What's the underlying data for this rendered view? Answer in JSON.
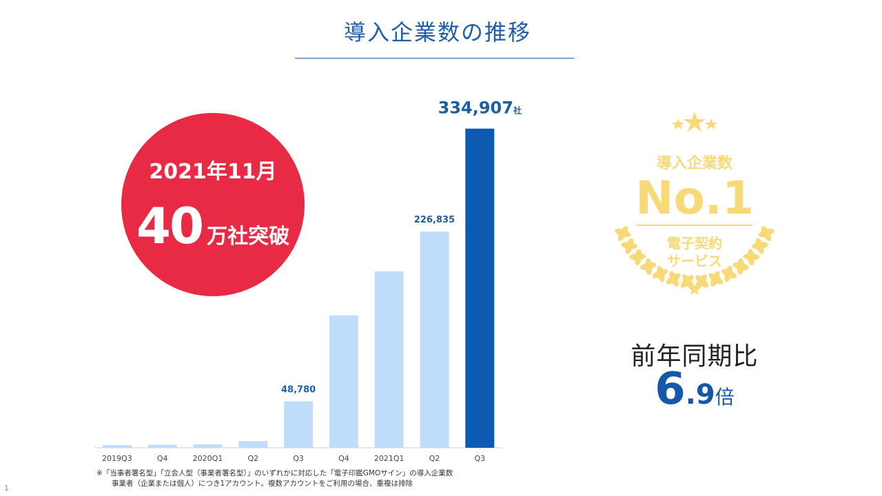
{
  "title": "導入企業数の推移",
  "chart_data": {
    "type": "bar",
    "categories": [
      "2019Q3",
      "Q4",
      "2020Q1",
      "Q2",
      "Q3",
      "Q4",
      "2021Q1",
      "Q2",
      "Q3"
    ],
    "values": [
      2800,
      3100,
      3500,
      7000,
      48780,
      139000,
      185000,
      226835,
      334907
    ],
    "data_labels": [
      "",
      "",
      "",
      "",
      "48,780",
      "",
      "",
      "226,835",
      "334,907"
    ],
    "final_label_unit": "社",
    "ylim": [
      0,
      360000
    ],
    "colors": {
      "bar": "#bfdcfa",
      "highlight": "#0c5bb0",
      "label": "#1c5fa3"
    }
  },
  "milestone": {
    "date": "2021年11月",
    "number": "40",
    "suffix": "万社突破",
    "color": "#e92a45"
  },
  "badge": {
    "line1": "導入企業数",
    "line2": "No.1",
    "line3": "電子契約",
    "line4": "サービス",
    "color": "#f7d978"
  },
  "yoy": {
    "label": "前年同期比",
    "value_int": "6",
    "value_dec": ".9",
    "unit": "倍"
  },
  "footnote": {
    "line1": "※「当事者署名型」「立会人型（事業者署名型）」のいずれかに対応した「電子印鑑GMOサイン」の導入企業数",
    "line2": "事業者（企業または個人）につき1アカウント。複数アカウントをご利用の場合、重複は排除"
  },
  "page_number": "1"
}
